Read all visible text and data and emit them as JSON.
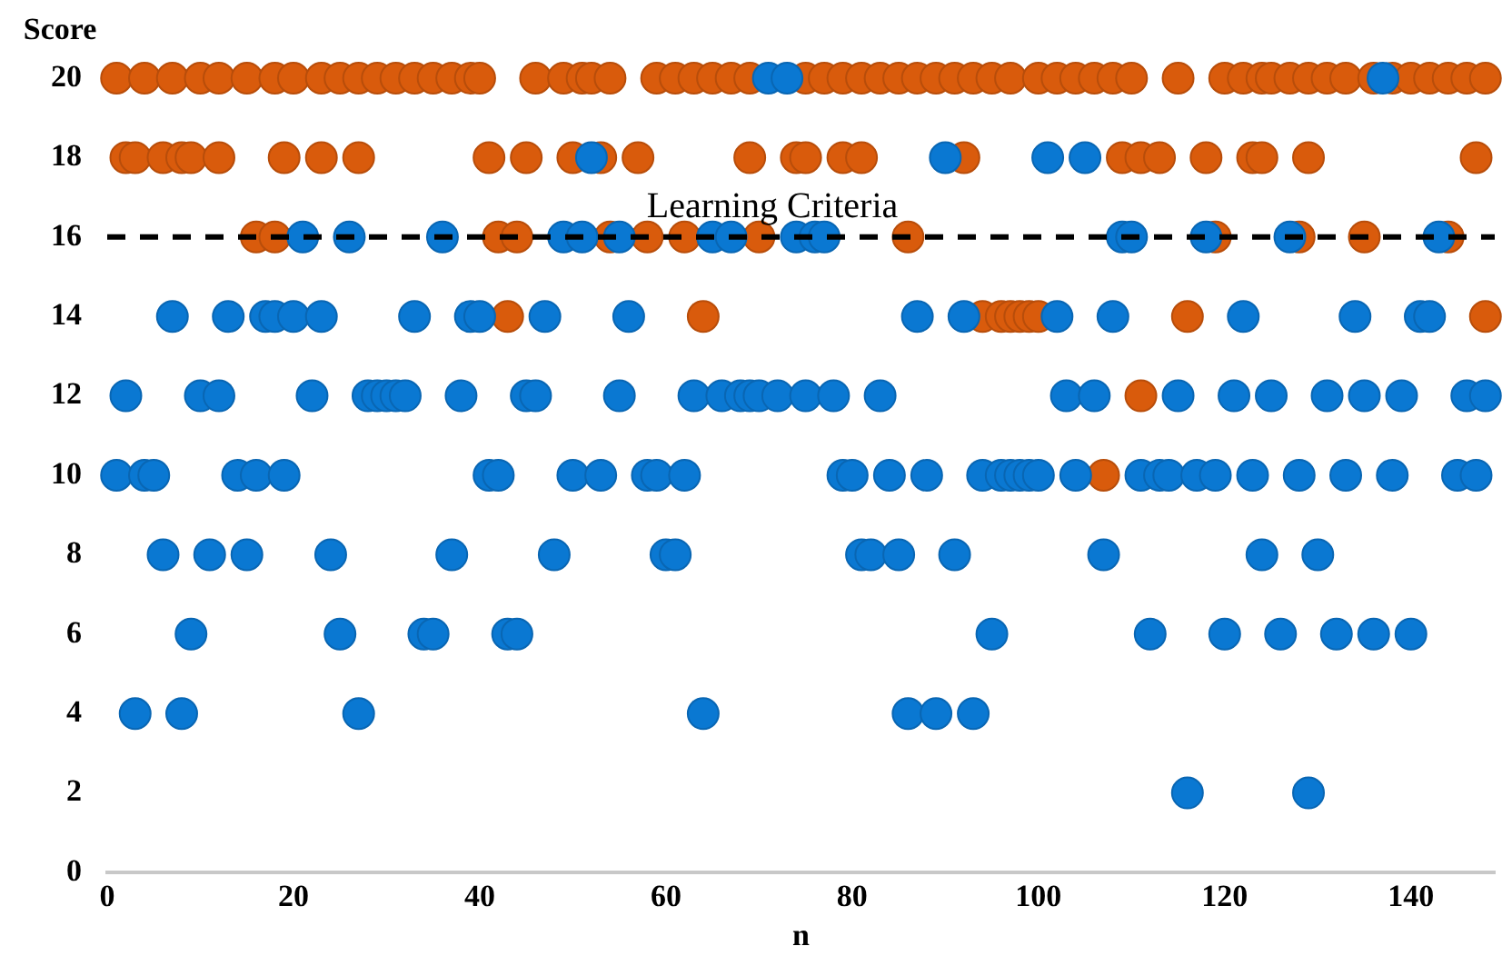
{
  "chart_data": {
    "type": "scatter",
    "xlabel": "n",
    "ylabel": "Score",
    "xlim": [
      0,
      149
    ],
    "xticks": [
      0,
      20,
      40,
      60,
      80,
      100,
      120,
      140
    ],
    "ylim": [
      0,
      20
    ],
    "yticks": [
      0,
      2,
      4,
      6,
      8,
      10,
      12,
      14,
      16,
      18,
      20
    ],
    "grid": false,
    "legend": false,
    "marker": "circle",
    "ref_lines": [
      {
        "axis": "y",
        "value": 16,
        "label": "Learning Criteria",
        "color": "#000000",
        "line_style": "dashed"
      }
    ],
    "series": [
      {
        "color": "#0a78d2",
        "x": [
          71,
          73,
          137,
          101,
          105,
          52,
          90,
          21,
          26,
          36,
          49,
          51,
          55,
          65,
          67,
          74,
          76,
          77,
          109,
          110,
          118,
          127,
          143,
          7,
          13,
          17,
          18,
          20,
          23,
          33,
          39,
          40,
          47,
          56,
          87,
          92,
          102,
          108,
          122,
          134,
          141,
          142,
          2,
          10,
          12,
          22,
          28,
          29,
          30,
          31,
          32,
          38,
          45,
          46,
          55,
          63,
          66,
          68,
          69,
          70,
          72,
          75,
          78,
          83,
          103,
          106,
          115,
          121,
          125,
          131,
          135,
          139,
          146,
          148,
          1,
          4,
          5,
          14,
          16,
          19,
          41,
          42,
          50,
          53,
          58,
          59,
          62,
          79,
          80,
          84,
          88,
          94,
          96,
          97,
          98,
          99,
          100,
          104,
          111,
          113,
          114,
          117,
          119,
          123,
          128,
          133,
          138,
          145,
          147,
          6,
          11,
          15,
          24,
          37,
          48,
          60,
          61,
          81,
          82,
          85,
          91,
          107,
          124,
          130,
          9,
          25,
          34,
          35,
          43,
          44,
          95,
          112,
          120,
          126,
          132,
          136,
          140,
          3,
          8,
          27,
          64,
          86,
          89,
          93,
          116,
          129
        ],
        "values": [
          20,
          20,
          20,
          18,
          18,
          18,
          18,
          16,
          16,
          16,
          16,
          16,
          16,
          16,
          16,
          16,
          16,
          16,
          16,
          16,
          16,
          16,
          16,
          14,
          14,
          14,
          14,
          14,
          14,
          14,
          14,
          14,
          14,
          14,
          14,
          14,
          14,
          14,
          14,
          14,
          14,
          14,
          12,
          12,
          12,
          12,
          12,
          12,
          12,
          12,
          12,
          12,
          12,
          12,
          12,
          12,
          12,
          12,
          12,
          12,
          12,
          12,
          12,
          12,
          12,
          12,
          12,
          12,
          12,
          12,
          12,
          12,
          12,
          12,
          10,
          10,
          10,
          10,
          10,
          10,
          10,
          10,
          10,
          10,
          10,
          10,
          10,
          10,
          10,
          10,
          10,
          10,
          10,
          10,
          10,
          10,
          10,
          10,
          10,
          10,
          10,
          10,
          10,
          10,
          10,
          10,
          10,
          10,
          10,
          8,
          8,
          8,
          8,
          8,
          8,
          8,
          8,
          8,
          8,
          8,
          8,
          8,
          8,
          8,
          6,
          6,
          6,
          6,
          6,
          6,
          6,
          6,
          6,
          6,
          6,
          6,
          6,
          4,
          4,
          4,
          4,
          4,
          4,
          4,
          2,
          2
        ]
      },
      {
        "color": "#d95b0c",
        "x": [
          1,
          4,
          7,
          10,
          12,
          15,
          18,
          20,
          23,
          25,
          27,
          29,
          31,
          33,
          35,
          37,
          39,
          40,
          46,
          49,
          51,
          52,
          54,
          59,
          61,
          63,
          65,
          67,
          69,
          75,
          77,
          79,
          81,
          83,
          85,
          87,
          89,
          91,
          93,
          95,
          97,
          100,
          102,
          104,
          106,
          108,
          110,
          115,
          120,
          122,
          124,
          125,
          127,
          129,
          131,
          133,
          136,
          138,
          140,
          142,
          144,
          146,
          148,
          2,
          3,
          6,
          8,
          9,
          12,
          19,
          23,
          27,
          41,
          45,
          50,
          53,
          57,
          69,
          74,
          75,
          79,
          81,
          92,
          109,
          111,
          113,
          118,
          123,
          124,
          129,
          147,
          16,
          18,
          42,
          44,
          54,
          58,
          62,
          70,
          86,
          119,
          128,
          135,
          144,
          43,
          64,
          94,
          96,
          97,
          98,
          99,
          100,
          116,
          148,
          111,
          107
        ],
        "values": [
          20,
          20,
          20,
          20,
          20,
          20,
          20,
          20,
          20,
          20,
          20,
          20,
          20,
          20,
          20,
          20,
          20,
          20,
          20,
          20,
          20,
          20,
          20,
          20,
          20,
          20,
          20,
          20,
          20,
          20,
          20,
          20,
          20,
          20,
          20,
          20,
          20,
          20,
          20,
          20,
          20,
          20,
          20,
          20,
          20,
          20,
          20,
          20,
          20,
          20,
          20,
          20,
          20,
          20,
          20,
          20,
          20,
          20,
          20,
          20,
          20,
          20,
          20,
          18,
          18,
          18,
          18,
          18,
          18,
          18,
          18,
          18,
          18,
          18,
          18,
          18,
          18,
          18,
          18,
          18,
          18,
          18,
          18,
          18,
          18,
          18,
          18,
          18,
          18,
          18,
          18,
          16,
          16,
          16,
          16,
          16,
          16,
          16,
          16,
          16,
          16,
          16,
          16,
          16,
          14,
          14,
          14,
          14,
          14,
          14,
          14,
          14,
          14,
          14,
          12,
          10
        ]
      }
    ]
  }
}
